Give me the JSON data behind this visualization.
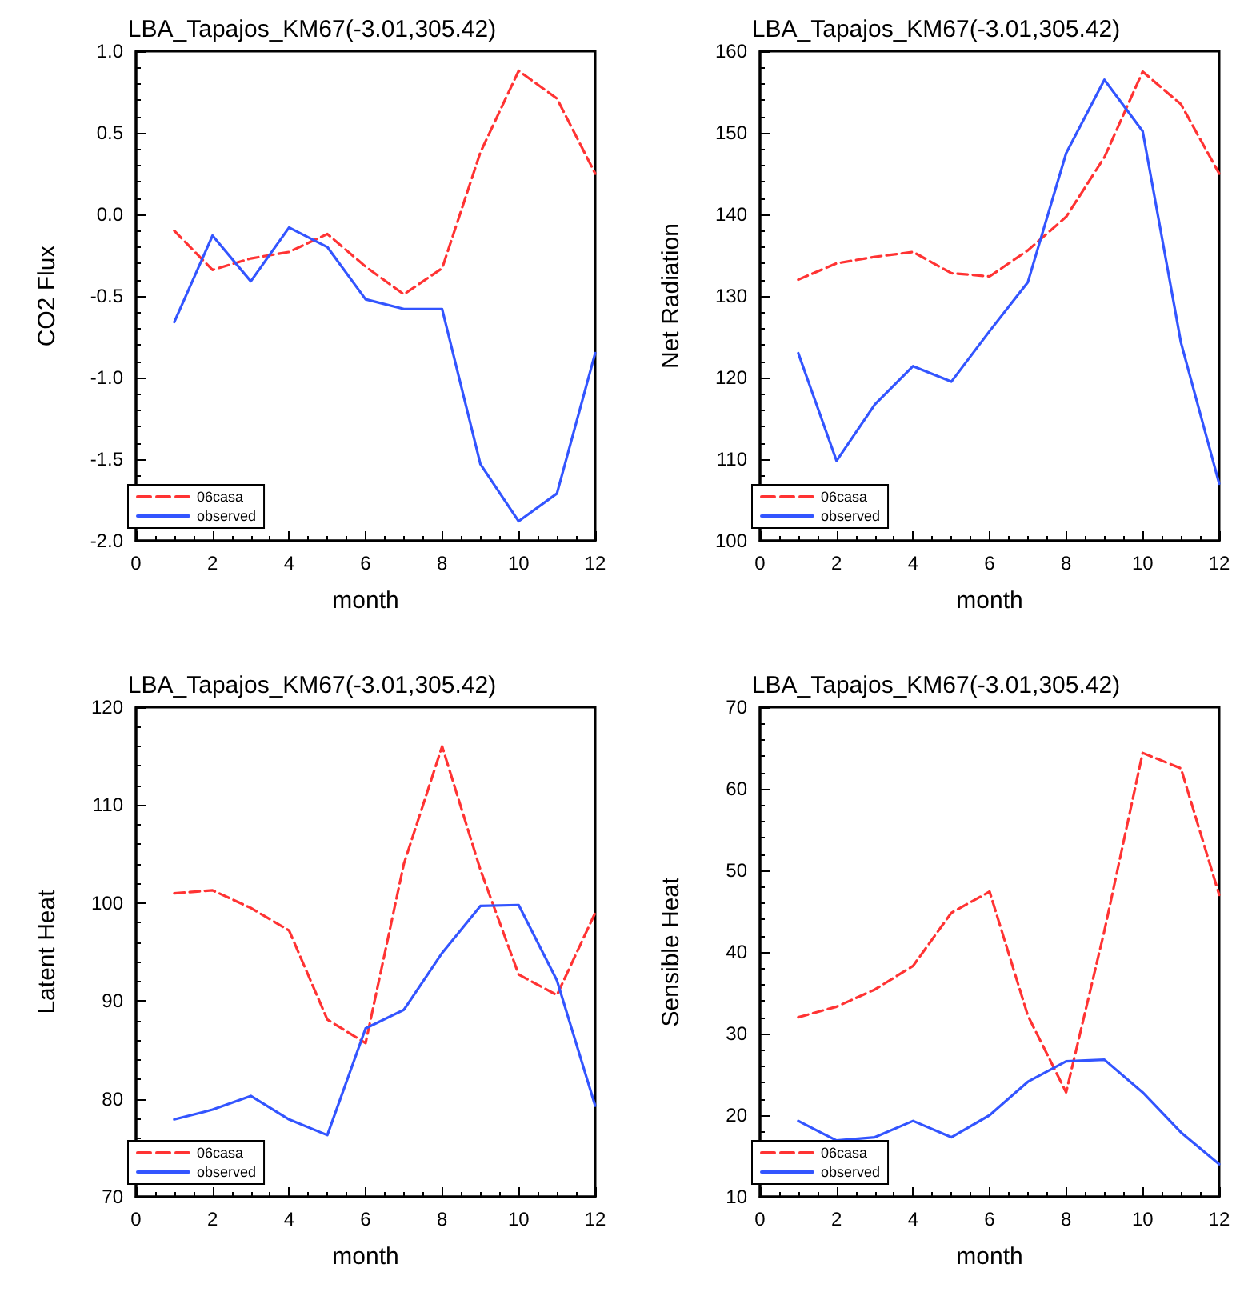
{
  "chart_data": [
    {
      "type": "line",
      "title": "LBA_Tapajos_KM67(-3.01,305.42)",
      "xlabel": "month",
      "ylabel": "CO2 Flux",
      "x": [
        1,
        2,
        3,
        4,
        5,
        6,
        7,
        8,
        9,
        10,
        11,
        12
      ],
      "xlim": [
        0,
        12
      ],
      "xticks": [
        0,
        2,
        4,
        6,
        8,
        10,
        12
      ],
      "ylim": [
        -2,
        1
      ],
      "yticks": [
        {
          "value": -2,
          "label": "-2.0"
        },
        -1.5,
        {
          "value": -1,
          "label": "-1.0"
        },
        -0.5,
        {
          "value": 0,
          "label": "0.0"
        },
        0.5,
        {
          "value": 1,
          "label": "1.0"
        }
      ],
      "grid": false,
      "legend": "bottom left",
      "marker": "none",
      "series": [
        {
          "name": "06casa",
          "color": "#ff3333",
          "line_style": "dashed",
          "values": [
            -0.1,
            -0.34,
            -0.27,
            -0.23,
            -0.12,
            -0.32,
            -0.49,
            -0.33,
            0.38,
            0.88,
            0.71,
            0.25
          ]
        },
        {
          "name": "observed",
          "color": "#3355ff",
          "line_style": "solid",
          "values": [
            -0.66,
            -0.13,
            -0.41,
            -0.08,
            -0.2,
            -0.52,
            -0.58,
            -0.58,
            -1.53,
            -1.88,
            -1.71,
            -0.85
          ]
        }
      ]
    },
    {
      "type": "line",
      "title": "LBA_Tapajos_KM67(-3.01,305.42)",
      "xlabel": "month",
      "ylabel": "Net Radiation",
      "x": [
        1,
        2,
        3,
        4,
        5,
        6,
        7,
        8,
        9,
        10,
        11,
        12
      ],
      "xlim": [
        0,
        12
      ],
      "xticks": [
        0,
        2,
        4,
        6,
        8,
        10,
        12
      ],
      "ylim": [
        100,
        160
      ],
      "yticks": [
        100,
        110,
        120,
        130,
        140,
        150,
        160
      ],
      "grid": false,
      "legend": "bottom left",
      "marker": "none",
      "series": [
        {
          "name": "06casa",
          "color": "#ff3333",
          "line_style": "dashed",
          "values": [
            132,
            134,
            134.8,
            135.4,
            132.8,
            132.4,
            135.6,
            139.7,
            147,
            157.5,
            153.5,
            145
          ]
        },
        {
          "name": "observed",
          "color": "#3355ff",
          "line_style": "solid",
          "values": [
            123,
            109.8,
            116.7,
            121.4,
            119.5,
            125.7,
            131.7,
            147.5,
            156.5,
            150.2,
            124.3,
            107
          ]
        }
      ]
    },
    {
      "type": "line",
      "title": "LBA_Tapajos_KM67(-3.01,305.42)",
      "xlabel": "month",
      "ylabel": "Latent Heat",
      "x": [
        1,
        2,
        3,
        4,
        5,
        6,
        7,
        8,
        9,
        10,
        11,
        12
      ],
      "xlim": [
        0,
        12
      ],
      "xticks": [
        0,
        2,
        4,
        6,
        8,
        10,
        12
      ],
      "ylim": [
        70,
        120
      ],
      "yticks": [
        70,
        80,
        90,
        100,
        110,
        120
      ],
      "grid": false,
      "legend": "bottom left",
      "marker": "none",
      "series": [
        {
          "name": "06casa",
          "color": "#ff3333",
          "line_style": "dashed",
          "values": [
            101,
            101.3,
            99.5,
            97.2,
            88.1,
            85.7,
            104,
            116,
            103.4,
            92.7,
            90.6,
            99
          ]
        },
        {
          "name": "observed",
          "color": "#3355ff",
          "line_style": "solid",
          "values": [
            77.9,
            78.9,
            80.3,
            77.9,
            76.3,
            87.2,
            89.1,
            94.9,
            99.7,
            99.8,
            92.1,
            79.3
          ]
        }
      ]
    },
    {
      "type": "line",
      "title": "LBA_Tapajos_KM67(-3.01,305.42)",
      "xlabel": "month",
      "ylabel": "Sensible Heat",
      "x": [
        1,
        2,
        3,
        4,
        5,
        6,
        7,
        8,
        9,
        10,
        11,
        12
      ],
      "xlim": [
        0,
        12
      ],
      "xticks": [
        0,
        2,
        4,
        6,
        8,
        10,
        12
      ],
      "ylim": [
        10,
        70
      ],
      "yticks": [
        10,
        20,
        30,
        40,
        50,
        60,
        70
      ],
      "grid": false,
      "legend": "bottom left",
      "marker": "none",
      "series": [
        {
          "name": "06casa",
          "color": "#ff3333",
          "line_style": "dashed",
          "values": [
            32,
            33.3,
            35.4,
            38.3,
            44.8,
            47.4,
            32.2,
            22.8,
            42.6,
            64.4,
            62.5,
            47
          ]
        },
        {
          "name": "observed",
          "color": "#3355ff",
          "line_style": "solid",
          "values": [
            19.3,
            16.9,
            17.3,
            19.3,
            17.3,
            20,
            24.1,
            26.6,
            26.8,
            22.8,
            17.9,
            14
          ]
        }
      ]
    }
  ]
}
